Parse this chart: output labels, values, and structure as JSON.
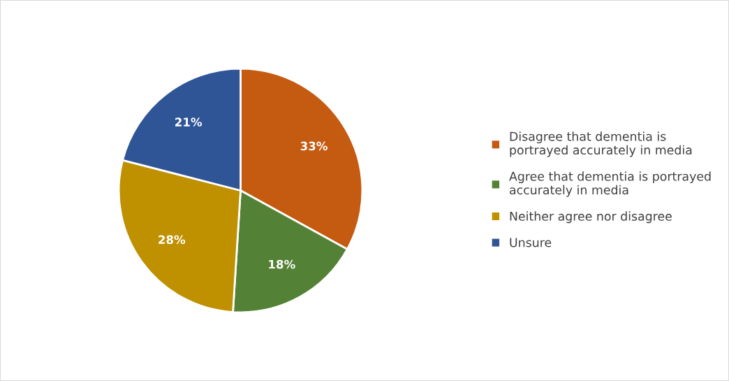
{
  "chart_data": {
    "type": "pie",
    "categories": [
      "Disagree that dementia is\nportrayed accurately in media",
      "Agree that dementia is portrayed\naccurately in media",
      "Neither agree nor disagree",
      "Unsure"
    ],
    "values": [
      33,
      18,
      28,
      21
    ],
    "colors": [
      "#c55a11",
      "#538135",
      "#bf9000",
      "#2f5597"
    ],
    "value_labels": [
      "33%",
      "18%",
      "28%",
      "21%"
    ],
    "legend": "right"
  }
}
